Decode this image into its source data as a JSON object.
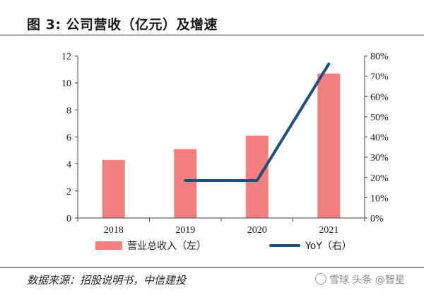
{
  "title": "图 3: 公司营收（亿元）及增速",
  "source": "数据来源：招股说明书，中信建投",
  "watermark": "雪球 头条 @智星",
  "chart_data": {
    "type": "bar",
    "categories": [
      "2018",
      "2019",
      "2020",
      "2021"
    ],
    "series": [
      {
        "name": "营业总收入（左）",
        "type": "bar",
        "axis": "left",
        "color": "#f28080",
        "values": [
          4.3,
          5.1,
          6.1,
          10.7
        ]
      },
      {
        "name": "YoY（右）",
        "type": "line",
        "axis": "right",
        "color": "#1f4e79",
        "values": [
          null,
          18.5,
          18.5,
          76
        ]
      }
    ],
    "y_left": {
      "min": 0,
      "max": 12,
      "ticks": [
        0,
        2,
        4,
        6,
        8,
        10,
        12
      ]
    },
    "y_right": {
      "min": 0,
      "max": 80,
      "ticks": [
        "0%",
        "10%",
        "20%",
        "30%",
        "40%",
        "50%",
        "60%",
        "70%",
        "80%"
      ]
    },
    "grid": false,
    "legend_position": "bottom"
  }
}
